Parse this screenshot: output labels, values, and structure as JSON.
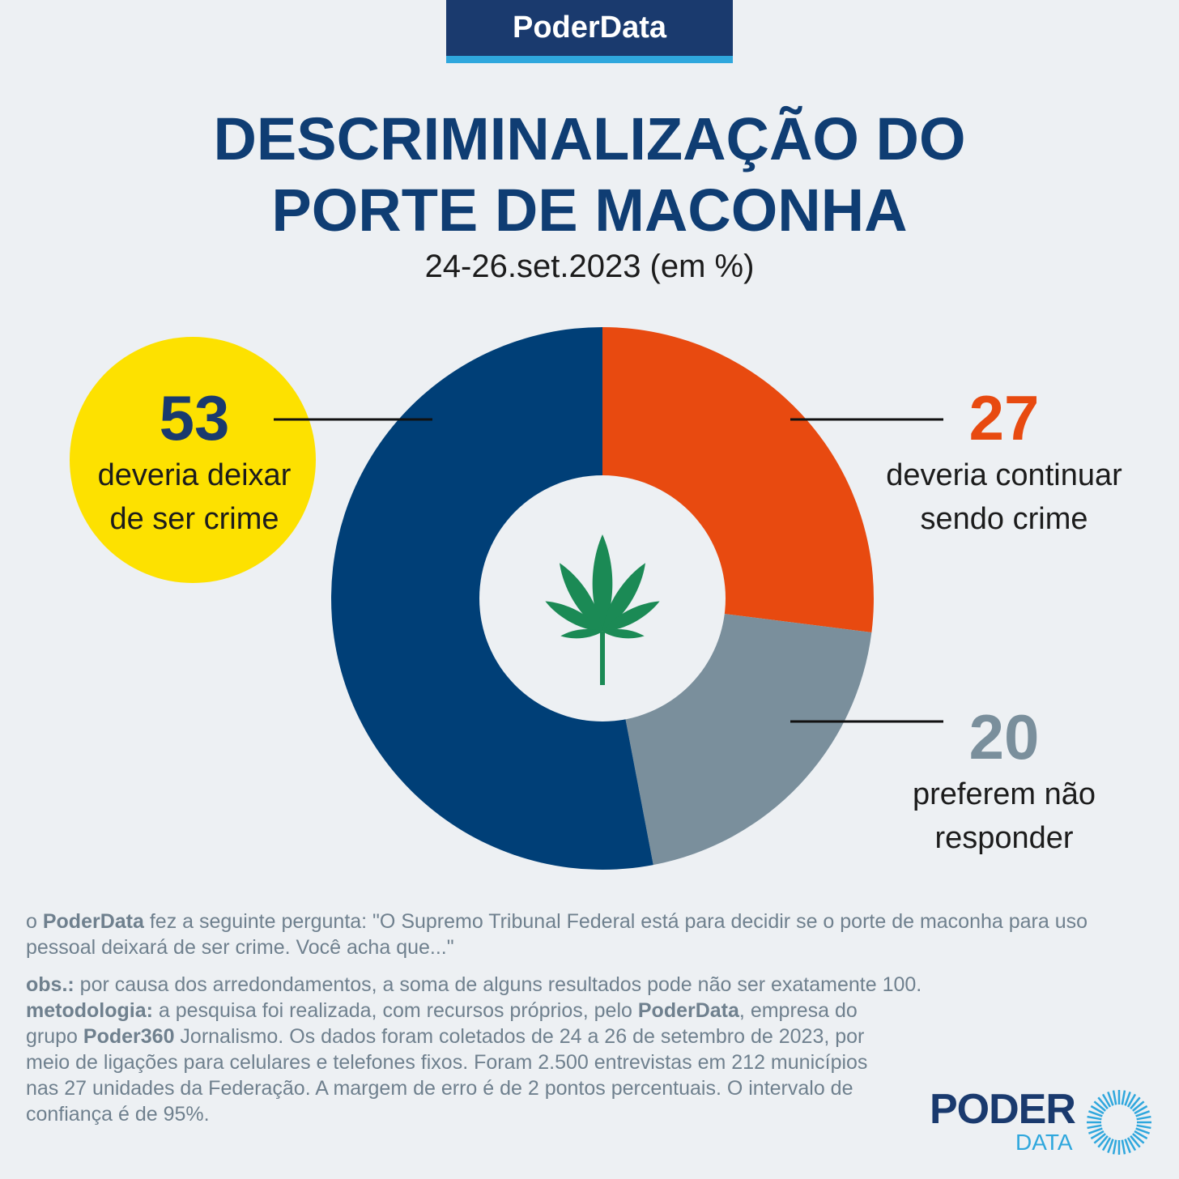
{
  "header": {
    "brand": "PoderData"
  },
  "title": {
    "line1": "DESCRIMINALIZAÇÃO DO",
    "line2": "PORTE DE MACONHA"
  },
  "subtitle": "24-26.set.2023 (em %)",
  "chart_data": {
    "type": "pie",
    "variant": "donut",
    "categories": [
      "deveria deixar de ser crime",
      "deveria continuar sendo crime",
      "preferem não responder"
    ],
    "values": [
      53,
      27,
      20
    ],
    "colors": [
      "#003f77",
      "#e84a10",
      "#7a8f9c"
    ],
    "center_icon": "cannabis-leaf-icon"
  },
  "labels": {
    "deixar": {
      "value": "53",
      "line1": "deveria deixar",
      "line2": "de ser crime",
      "badge_color": "#fde100"
    },
    "continuar": {
      "value": "27",
      "line1": "deveria continuar",
      "line2": "sendo crime"
    },
    "responder": {
      "value": "20",
      "line1": "preferem não",
      "line2": "responder"
    }
  },
  "footer": {
    "question_prefix": "o",
    "question_brand": "PoderData",
    "question_text": "fez a seguinte pergunta: \"O Supremo Tribunal Federal está para decidir se o porte de maconha para uso pessoal deixará de ser crime. Você acha que...\"",
    "obs_label": "obs.:",
    "obs_text": "por causa dos arredondamentos, a soma de alguns resultados pode não ser exatamente 100.",
    "method_label": "metodologia:",
    "method_text1": "a pesquisa foi realizada, com recursos próprios, pelo",
    "method_brand1": "PoderData",
    "method_text2": ", empresa do grupo",
    "method_brand2": "Poder360",
    "method_text3": "Jornalismo. Os dados foram coletados de 24 a 26 de setembro de 2023, por meio de ligações para celulares e telefones fixos. Foram 2.500 entrevistas em 212 municípios nas 27 unidades da Federação. A margem de erro é de 2 pontos percentuais. O intervalo de confiança é de 95%."
  },
  "logo": {
    "line1": "PODER",
    "line2": "DATA"
  }
}
